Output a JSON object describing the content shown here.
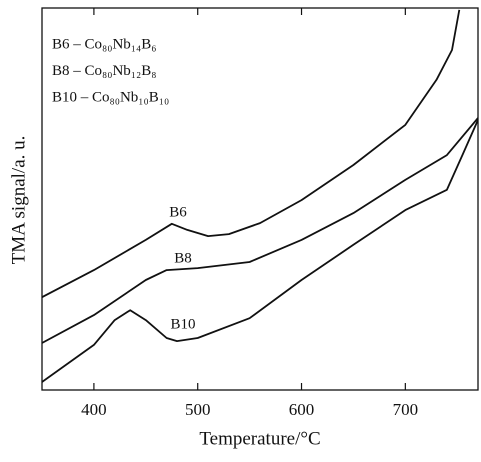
{
  "chart_data": {
    "type": "line",
    "x_label": "Temperature/°C",
    "y_label": "TMA signal/a. u.",
    "xlim": [
      350,
      770
    ],
    "xticks": [
      400,
      500,
      600,
      700
    ],
    "ylim": [
      0,
      100
    ],
    "legend_text": [
      "B6 – Co₈₀Nb₁₄B₆",
      "B8 – Co₈₀Nb₁₂B₈",
      "B10 – Co₈₀Nb₁₀B₁₀"
    ],
    "series": [
      {
        "name": "B6",
        "color": "#111111",
        "x": [
          350,
          400,
          450,
          475,
          490,
          510,
          530,
          560,
          600,
          650,
          700,
          730,
          745,
          752
        ],
        "values": [
          24.3,
          31.4,
          39.3,
          43.5,
          41.9,
          40.3,
          40.8,
          43.7,
          49.7,
          58.9,
          69.4,
          81.2,
          89.0,
          99.5
        ]
      },
      {
        "name": "B8",
        "color": "#111111",
        "x": [
          350,
          400,
          450,
          470,
          500,
          550,
          600,
          650,
          700,
          740,
          770
        ],
        "values": [
          12.3,
          19.6,
          28.8,
          31.4,
          31.9,
          33.5,
          39.3,
          46.3,
          55.0,
          61.5,
          71.2
        ]
      },
      {
        "name": "B10",
        "color": "#111111",
        "x": [
          350,
          400,
          420,
          435,
          450,
          470,
          480,
          500,
          550,
          600,
          650,
          700,
          740,
          755,
          770
        ],
        "values": [
          2.1,
          11.8,
          18.3,
          20.9,
          18.3,
          13.6,
          12.8,
          13.6,
          18.8,
          28.8,
          38.0,
          47.1,
          52.4,
          61.5,
          70.7
        ]
      }
    ]
  }
}
